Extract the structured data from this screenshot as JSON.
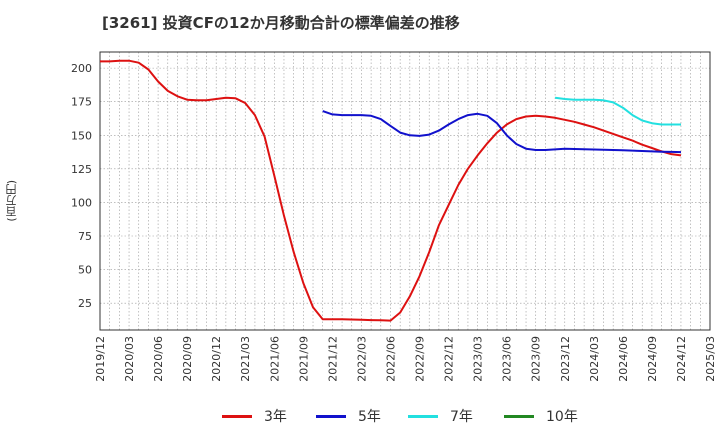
{
  "title": "[3261]  投資CFの12か月移動合計の標準偏差の推移",
  "y_unit_label": "(百万円)",
  "chart_data": {
    "type": "line",
    "title": "[3261]  投資CFの12か月移動合計の標準偏差の推移",
    "ylabel": "(百万円)",
    "ylim": [
      5,
      212
    ],
    "yticks": [
      25,
      50,
      75,
      100,
      125,
      150,
      175,
      200
    ],
    "xlim": [
      "2019-12",
      "2025-03"
    ],
    "xticks": [
      "2019/12",
      "2020/03",
      "2020/06",
      "2020/09",
      "2020/12",
      "2021/03",
      "2021/06",
      "2021/09",
      "2021/12",
      "2022/03",
      "2022/06",
      "2022/09",
      "2022/12",
      "2023/03",
      "2023/06",
      "2023/09",
      "2023/12",
      "2024/03",
      "2024/06",
      "2024/09",
      "2024/12",
      "2025/03"
    ],
    "grid": true,
    "legend_position": "bottom",
    "series": [
      {
        "name": "3年",
        "color": "#dd1111",
        "x": [
          "2019-12",
          "2020-01",
          "2020-02",
          "2020-03",
          "2020-04",
          "2020-05",
          "2020-06",
          "2020-07",
          "2020-08",
          "2020-09",
          "2020-10",
          "2020-11",
          "2020-12",
          "2021-01",
          "2021-02",
          "2021-03",
          "2021-04",
          "2021-05",
          "2021-06",
          "2021-07",
          "2021-08",
          "2021-09",
          "2021-10",
          "2021-11",
          "2021-12",
          "2022-01",
          "2022-02",
          "2022-03",
          "2022-04",
          "2022-05",
          "2022-06",
          "2022-07",
          "2022-08",
          "2022-09",
          "2022-10",
          "2022-11",
          "2022-12",
          "2023-01",
          "2023-02",
          "2023-03",
          "2023-04",
          "2023-05",
          "2023-06",
          "2023-07",
          "2023-08",
          "2023-09",
          "2023-10",
          "2023-11",
          "2023-12",
          "2024-01",
          "2024-02",
          "2024-03",
          "2024-04",
          "2024-05",
          "2024-06",
          "2024-07",
          "2024-08",
          "2024-09",
          "2024-10",
          "2024-11",
          "2024-12"
        ],
        "values": [
          205,
          205,
          205.5,
          205.5,
          204,
          199,
          190,
          183,
          179,
          176.5,
          176,
          176,
          177,
          178,
          177.5,
          174,
          165,
          149,
          120,
          90,
          63,
          40,
          22,
          13,
          13,
          13,
          12.8,
          12.6,
          12.4,
          12.2,
          12,
          18,
          30,
          45,
          63,
          83,
          98,
          113,
          125,
          135,
          144,
          152,
          158,
          162,
          164,
          164.5,
          164,
          163,
          161.5,
          160,
          158,
          156,
          153.5,
          151,
          148.5,
          146,
          143,
          140.5,
          138,
          136,
          135
        ]
      },
      {
        "name": "5年",
        "color": "#1111cc",
        "x": [
          "2021-11",
          "2021-12",
          "2022-01",
          "2022-02",
          "2022-03",
          "2022-04",
          "2022-05",
          "2022-06",
          "2022-07",
          "2022-08",
          "2022-09",
          "2022-10",
          "2022-11",
          "2022-12",
          "2023-01",
          "2023-02",
          "2023-03",
          "2023-04",
          "2023-05",
          "2023-06",
          "2023-07",
          "2023-08",
          "2023-09",
          "2023-10",
          "2023-11",
          "2023-12",
          "2024-01",
          "2024-02",
          "2024-03",
          "2024-04",
          "2024-05",
          "2024-06",
          "2024-07",
          "2024-08",
          "2024-09",
          "2024-10",
          "2024-11",
          "2024-12"
        ],
        "values": [
          168,
          165.5,
          165,
          165,
          165,
          164.5,
          162,
          157,
          152,
          150,
          149.5,
          150.5,
          153.5,
          158,
          162,
          165,
          166,
          164.5,
          159,
          150,
          143.5,
          140,
          139,
          139,
          139.5,
          140,
          139.8,
          139.6,
          139.4,
          139.2,
          139,
          138.8,
          138.6,
          138.3,
          138,
          137.8,
          137.6,
          137.5
        ]
      },
      {
        "name": "7年",
        "color": "#22e0e0",
        "x": [
          "2023-11",
          "2023-12",
          "2024-01",
          "2024-02",
          "2024-03",
          "2024-04",
          "2024-05",
          "2024-06",
          "2024-07",
          "2024-08",
          "2024-09",
          "2024-10",
          "2024-11",
          "2024-12"
        ],
        "values": [
          178,
          177,
          176.5,
          176.5,
          176.5,
          176,
          174.5,
          170.5,
          165,
          161,
          159,
          158,
          158,
          158
        ]
      },
      {
        "name": "10年",
        "color": "#228822",
        "x": [],
        "values": []
      }
    ]
  }
}
